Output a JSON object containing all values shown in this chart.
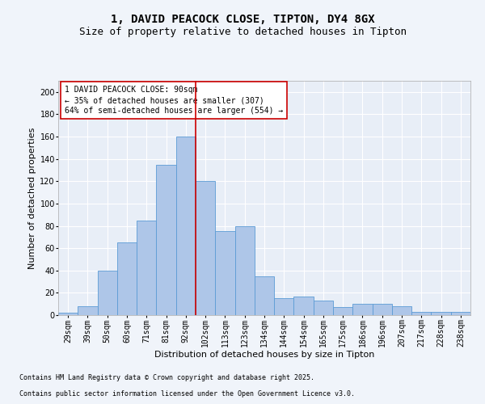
{
  "title1": "1, DAVID PEACOCK CLOSE, TIPTON, DY4 8GX",
  "title2": "Size of property relative to detached houses in Tipton",
  "xlabel": "Distribution of detached houses by size in Tipton",
  "ylabel": "Number of detached properties",
  "annotation_line1": "1 DAVID PEACOCK CLOSE: 90sqm",
  "annotation_line2": "← 35% of detached houses are smaller (307)",
  "annotation_line3": "64% of semi-detached houses are larger (554) →",
  "footnote1": "Contains HM Land Registry data © Crown copyright and database right 2025.",
  "footnote2": "Contains public sector information licensed under the Open Government Licence v3.0.",
  "bar_labels": [
    "29sqm",
    "39sqm",
    "50sqm",
    "60sqm",
    "71sqm",
    "81sqm",
    "92sqm",
    "102sqm",
    "113sqm",
    "123sqm",
    "134sqm",
    "144sqm",
    "154sqm",
    "165sqm",
    "175sqm",
    "186sqm",
    "196sqm",
    "207sqm",
    "217sqm",
    "228sqm",
    "238sqm"
  ],
  "bar_heights": [
    2,
    8,
    40,
    65,
    85,
    135,
    160,
    120,
    75,
    80,
    35,
    15,
    17,
    13,
    7,
    10,
    10,
    8,
    3,
    3,
    3
  ],
  "bar_color": "#aec6e8",
  "bar_edge_color": "#5b9bd5",
  "vline_color": "#cc0000",
  "background_color": "#e8eef7",
  "fig_background": "#f0f4fa",
  "ylim": [
    0,
    210
  ],
  "yticks": [
    0,
    20,
    40,
    60,
    80,
    100,
    120,
    140,
    160,
    180,
    200
  ],
  "grid_color": "#ffffff",
  "annotation_box_color": "#cc0000",
  "title_fontsize": 10,
  "subtitle_fontsize": 9,
  "axis_label_fontsize": 8,
  "tick_fontsize": 7,
  "annotation_fontsize": 7,
  "footnote_fontsize": 6
}
